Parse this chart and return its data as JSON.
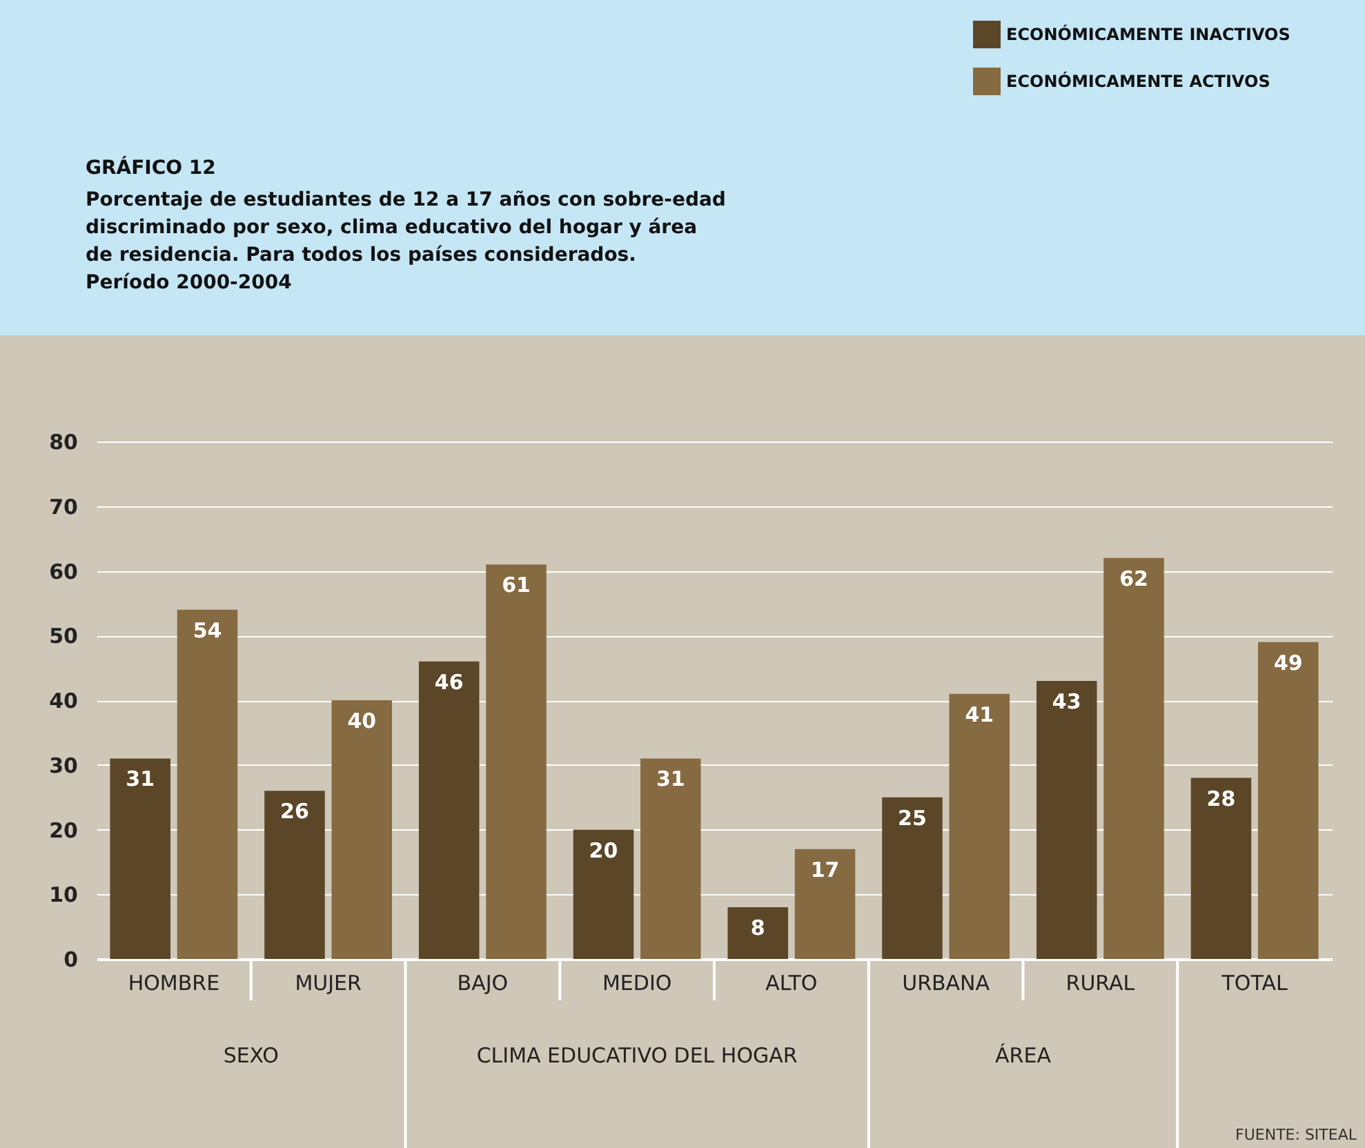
{
  "chart_data": {
    "type": "bar",
    "title": "GRÁFICO 12",
    "subtitle": "Porcentaje de estudiantes de 12 a 17 años con sobre-edad discriminado por sexo, clima educativo del hogar y área de residencia. Para todos los países considerados. Período 2000-2004",
    "categories": [
      "HOMBRE",
      "MUJER",
      "BAJO",
      "MEDIO",
      "ALTO",
      "URBANA",
      "RURAL",
      "TOTAL"
    ],
    "series": [
      {
        "name": "ECONÓMICAMENTE INACTIVOS",
        "color": "#5c4628",
        "values": [
          31,
          26,
          46,
          20,
          8,
          25,
          43,
          28
        ]
      },
      {
        "name": "ECONÓMICAMENTE ACTIVOS",
        "color": "#866a42",
        "values": [
          54,
          40,
          61,
          31,
          17,
          41,
          62,
          49
        ]
      }
    ],
    "ylim": [
      0,
      80
    ],
    "yticks": [
      0,
      10,
      20,
      30,
      40,
      50,
      60,
      70,
      80
    ],
    "grid": "y",
    "legend": "top right",
    "data_labels": true,
    "annotations": [
      "SEXO",
      "CLIMA EDUCATIVO DEL HOGAR",
      "ÁREA",
      "FUENTE: SITEAL"
    ]
  }
}
